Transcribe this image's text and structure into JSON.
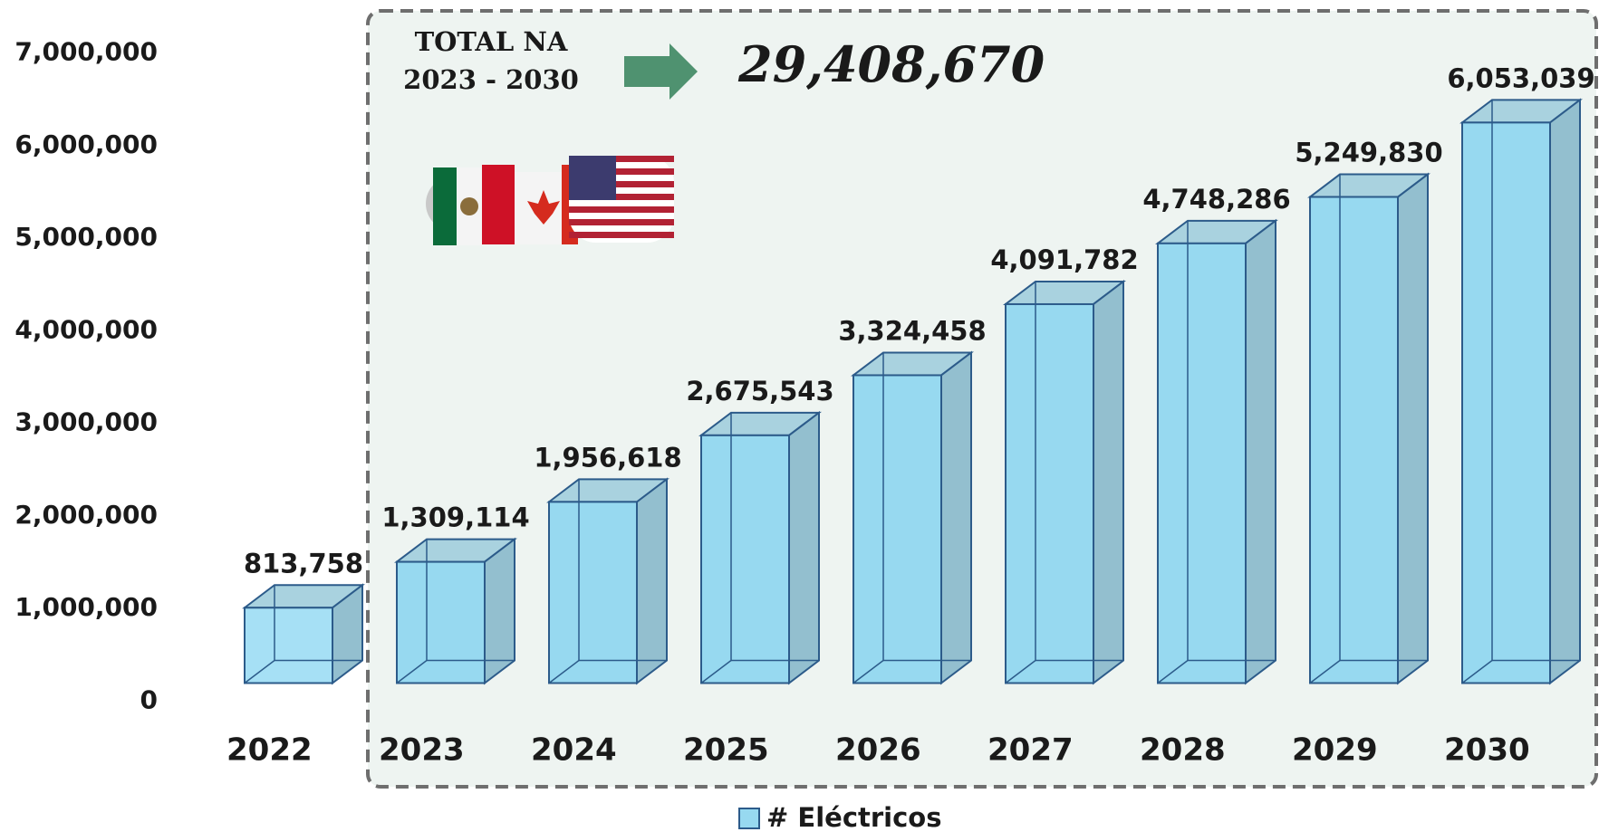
{
  "chart_data": {
    "type": "bar3d",
    "annotations": [
      "TOTAL NA",
      "2023 - 2030",
      "29,408,670"
    ],
    "categories": [
      "2022",
      "2023",
      "2024",
      "2025",
      "2026",
      "2027",
      "2028",
      "2029",
      "2030"
    ],
    "series": [
      {
        "name": "# Eléctricos",
        "color": "#97d9f0",
        "values": [
          813758,
          1309114,
          1956618,
          2675543,
          3324458,
          4091782,
          4748286,
          5249830,
          6053039
        ],
        "value_labels": [
          "813,758",
          "1,309,114",
          "1,956,618",
          "2,675,543",
          "3,324,458",
          "4,091,782",
          "4,748,286",
          "5,249,830",
          "6,053,039"
        ]
      }
    ],
    "ylim": [
      0,
      7000000
    ],
    "yticks": [
      0,
      {
        "value": 1000000,
        "label": "1,000,000"
      },
      {
        "value": 2000000,
        "label": "2,000,000"
      },
      {
        "value": 3000000,
        "label": "3,000,000"
      },
      {
        "value": 4000000,
        "label": "4,000,000"
      },
      {
        "value": 5000000,
        "label": "5,000,000"
      },
      {
        "value": 6000000,
        "label": "6,000,000"
      },
      {
        "value": 7000000,
        "label": "7,000,000"
      }
    ],
    "grid": false
  }
}
